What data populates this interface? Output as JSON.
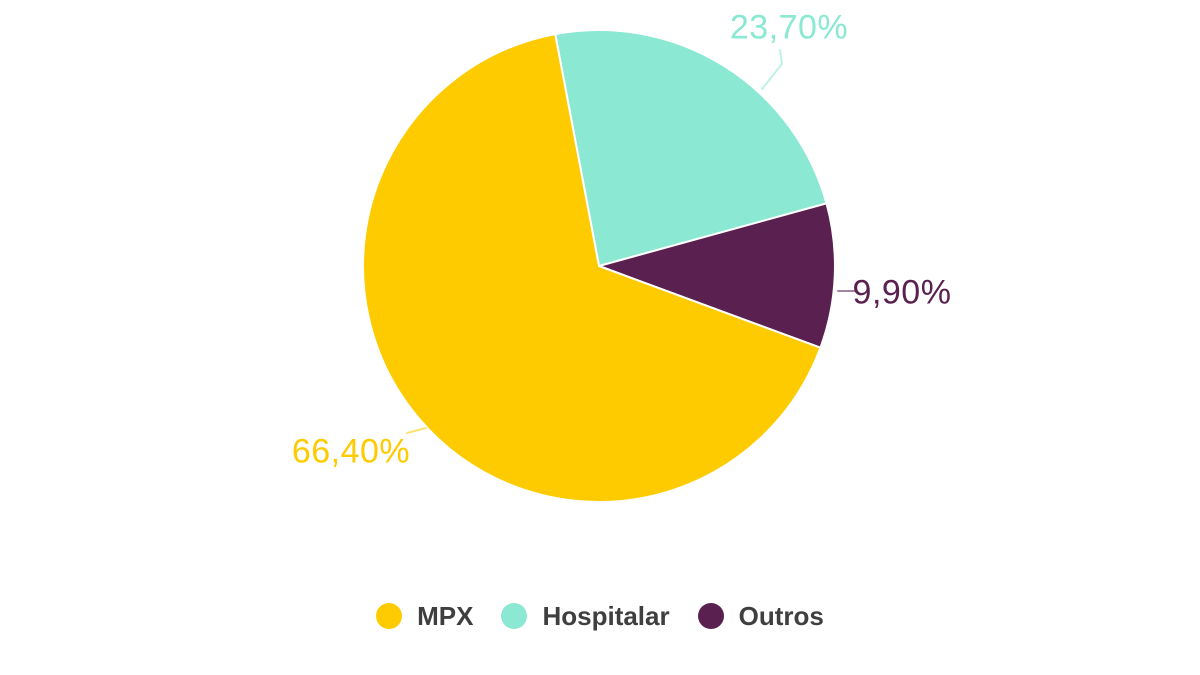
{
  "chart_data": {
    "type": "pie",
    "title": "",
    "unit": "%",
    "decimal_style": "comma",
    "legend_position": "bottom",
    "background_color": "#FFFFFF",
    "grid": false,
    "start_angle_deg": -10.7,
    "draw_sequence": [
      1,
      2,
      0
    ],
    "categories": [
      "MPX",
      "Hospitalar",
      "Outros"
    ],
    "values": [
      66.4,
      23.7,
      9.9
    ],
    "slices": [
      {
        "label": "MPX",
        "value": 66.4,
        "display": "66,40%",
        "color": "#FDCB00"
      },
      {
        "label": "Hospitalar",
        "value": 23.7,
        "display": "23,70%",
        "color": "#8AE8D3"
      },
      {
        "label": "Outros",
        "value": 9.9,
        "display": "9,90%",
        "color": "#5A2150"
      }
    ],
    "slice_border_color": "#FFFFFF",
    "legend_text_color": "#3F3F3F"
  }
}
